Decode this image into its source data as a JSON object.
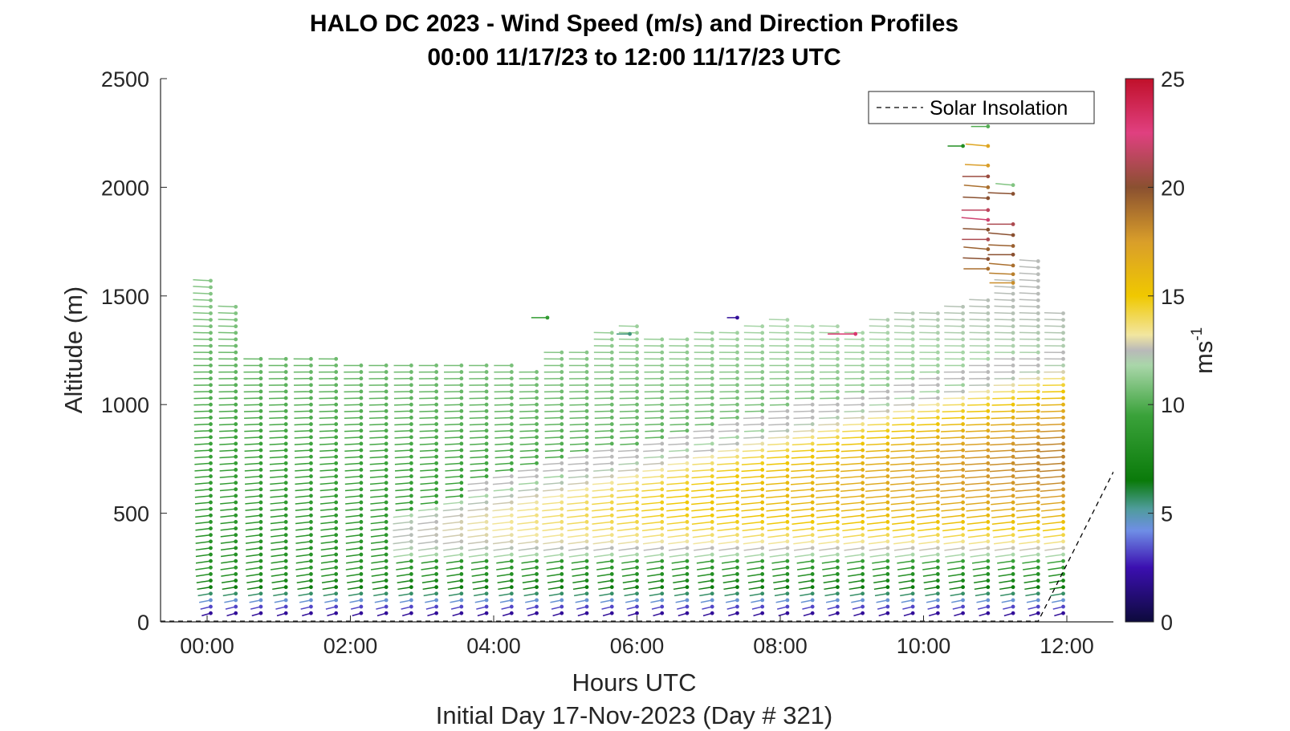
{
  "chart_data": {
    "type": "wind-barb-profile",
    "title": "HALO DC 2023 - Wind Speed (m/s) and Direction Profiles",
    "subtitle": "00:00 11/17/23 to 12:00 11/17/23  UTC",
    "xlabel": "Hours UTC",
    "ylabel": "Altitude (m)",
    "footer": "Initial Day 17-Nov-2023 (Day # 321)",
    "xlim": [
      -0.65,
      12.65
    ],
    "ylim": [
      0,
      2500
    ],
    "xticks": [
      0,
      2,
      4,
      6,
      8,
      10,
      12
    ],
    "xtick_labels": [
      "00:00",
      "02:00",
      "04:00",
      "06:00",
      "08:00",
      "10:00",
      "12:00"
    ],
    "yticks": [
      0,
      500,
      1000,
      1500,
      2000,
      2500
    ],
    "ytick_labels": [
      "0",
      "500",
      "1000",
      "1500",
      "2000",
      "2500"
    ],
    "colorbar": {
      "label": "ms",
      "label_exponent": "-1",
      "range": [
        0,
        25
      ],
      "ticks": [
        0,
        5,
        10,
        15,
        20,
        25
      ],
      "tick_labels": [
        "0",
        "5",
        "10",
        "15",
        "20",
        "25"
      ],
      "stops": [
        {
          "v": 0,
          "color": "#0d0a3c"
        },
        {
          "v": 2.5,
          "color": "#3b0fb0"
        },
        {
          "v": 4.2,
          "color": "#6f8ee6"
        },
        {
          "v": 5.2,
          "color": "#4f9c9c"
        },
        {
          "v": 6.5,
          "color": "#0a7a0a"
        },
        {
          "v": 9.5,
          "color": "#3aa23a"
        },
        {
          "v": 11.8,
          "color": "#a9d6a9"
        },
        {
          "v": 12.5,
          "color": "#b9b9b9"
        },
        {
          "v": 13.2,
          "color": "#f2e6a0"
        },
        {
          "v": 15,
          "color": "#f0c800"
        },
        {
          "v": 17.5,
          "color": "#d99e2a"
        },
        {
          "v": 20,
          "color": "#8a5030"
        },
        {
          "v": 22.5,
          "color": "#e04080"
        },
        {
          "v": 25,
          "color": "#c0102a"
        }
      ]
    },
    "legend": {
      "entries": [
        "Solar Insolation"
      ],
      "location": "top-right",
      "line_style": "dashed"
    },
    "profiles": {
      "times": [
        0.05,
        0.4,
        0.75,
        1.1,
        1.45,
        1.8,
        2.15,
        2.5,
        2.85,
        3.2,
        3.55,
        3.9,
        4.25,
        4.6,
        4.95,
        5.3,
        5.65,
        6.0,
        6.35,
        6.7,
        7.05,
        7.4,
        7.75,
        8.1,
        8.45,
        8.8,
        9.15,
        9.5,
        9.85,
        10.2,
        10.55,
        10.9,
        11.25,
        11.6,
        11.95
      ],
      "top_altitude": [
        1570,
        1460,
        1210,
        1210,
        1215,
        1210,
        1205,
        1200,
        1190,
        1185,
        1200,
        1185,
        1190,
        1175,
        1255,
        1260,
        1350,
        1370,
        1310,
        1320,
        1330,
        1340,
        1380,
        1390,
        1360,
        1380,
        1350,
        1400,
        1420,
        1430,
        1450,
        1490,
        1580,
        1660,
        1420
      ],
      "bottom_altitude": 40,
      "level_spacing_m": 30,
      "speed_model": "piecewise: 0-150 m ramps 2->6 m/s; mid-layer jet peaking near 15-17 m/s strengthening with time; upper layer 8-11 m/s",
      "direction_from_deg": [
        240,
        300
      ]
    },
    "upper_outliers": [
      {
        "x": 10.9,
        "altitudes": [
          1625,
          1670,
          1715,
          1760,
          1805,
          1850,
          1895,
          1950,
          2000,
          2050,
          2100,
          2190
        ],
        "speeds": [
          19,
          20,
          19.5,
          21,
          20,
          22,
          21.5,
          20,
          19,
          20.5,
          17.5,
          17
        ]
      },
      {
        "x": 11.25,
        "altitudes": [
          1560,
          1600,
          1640,
          1690,
          1730,
          1780,
          1830,
          1970,
          2010
        ],
        "speeds": [
          18,
          18.5,
          19,
          20,
          19.5,
          20,
          21,
          20,
          11
        ]
      },
      {
        "x": 10.55,
        "altitudes": [
          2190
        ],
        "speeds": [
          8
        ]
      },
      {
        "x": 10.9,
        "altitudes": [
          2280
        ],
        "speeds": [
          10
        ]
      },
      {
        "x": 4.75,
        "altitudes": [
          1400
        ],
        "speeds": [
          9
        ]
      },
      {
        "x": 5.9,
        "altitudes": [
          1325
        ],
        "speeds": [
          5.5
        ]
      },
      {
        "x": 7.4,
        "altitudes": [
          1400
        ],
        "speeds": [
          2
        ]
      },
      {
        "x": 9.05,
        "altitudes": [
          1325
        ],
        "speeds": [
          23
        ]
      }
    ],
    "solar_insolation_line": {
      "x": [
        -0.65,
        11.6,
        12.65
      ],
      "y": [
        3,
        3,
        690
      ]
    }
  }
}
